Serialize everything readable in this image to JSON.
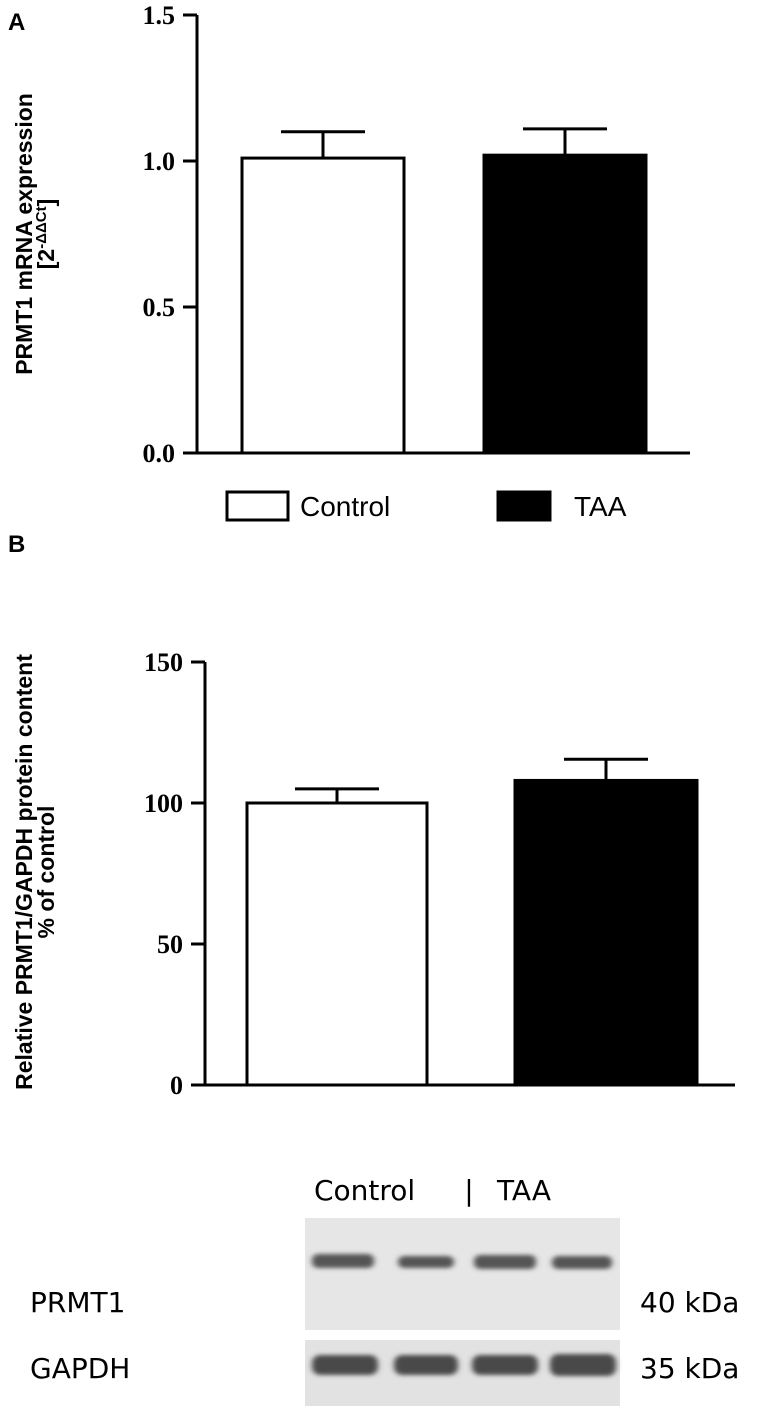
{
  "chart_data": [
    {
      "type": "bar",
      "panel_label": "A",
      "y_label": "PRMT1 mRNA expression",
      "y_label_sub": [
        "[2",
        "-ΔΔCt",
        "]"
      ],
      "ylim": [
        0,
        1.5
      ],
      "yticks": [
        {
          "value": 0,
          "label": "0.0"
        },
        {
          "value": 0.5,
          "label": "0.5"
        },
        {
          "value": 1,
          "label": "1.0"
        },
        {
          "value": 1.5,
          "label": "1.5"
        }
      ],
      "legend": true,
      "series": [
        {
          "name": "Control",
          "color": "#ffffff",
          "values": [
            1.01
          ],
          "errors": [
            0.09
          ]
        },
        {
          "name": "TAA",
          "color": "#000000",
          "values": [
            1.02
          ],
          "errors": [
            0.09
          ]
        }
      ]
    },
    {
      "type": "bar",
      "panel_label": "B",
      "y_label": "Relative PRMT1/GAPDH protein content",
      "y_label_sub": [
        "% of control"
      ],
      "ylim": [
        0,
        150
      ],
      "yticks": [
        0,
        50,
        100,
        150
      ],
      "legend": false,
      "series": [
        {
          "name": "Control",
          "color": "#ffffff",
          "values": [
            100
          ],
          "errors": [
            5
          ]
        },
        {
          "name": "TAA",
          "color": "#000000",
          "values": [
            108
          ],
          "errors": [
            7.5
          ]
        }
      ]
    }
  ],
  "blot": {
    "header": [
      "Control",
      "|",
      "TAA"
    ],
    "rows": [
      {
        "label": "PRMT1",
        "size": "40 kDa"
      },
      {
        "label": "GAPDH",
        "size": "35 kDa"
      }
    ]
  }
}
